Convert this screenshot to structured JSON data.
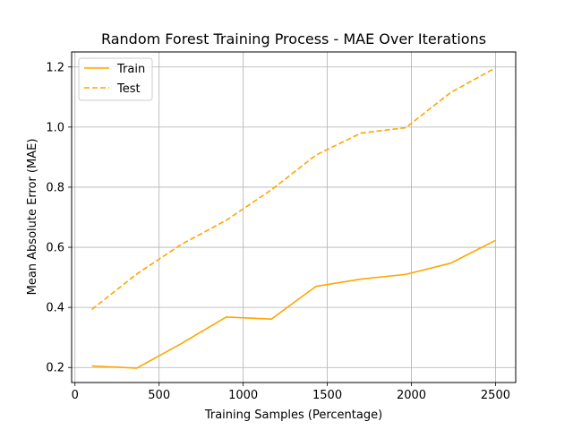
{
  "chart_data": {
    "type": "line",
    "title": "Random Forest Training Process - MAE Over Iterations",
    "xlabel": "Training Samples (Percentage)",
    "ylabel": "Mean Absolute Error (MAE)",
    "xlim": [
      -20,
      2620
    ],
    "ylim": [
      0.15,
      1.25
    ],
    "xticks": [
      0,
      500,
      1000,
      1500,
      2000,
      2500
    ],
    "xtick_labels": [
      "0",
      "500",
      "1000",
      "1500",
      "2000",
      "2500"
    ],
    "yticks": [
      0.2,
      0.4,
      0.6,
      0.8,
      1.0,
      1.2
    ],
    "ytick_labels": [
      "0.2",
      "0.4",
      "0.6",
      "0.8",
      "1.0",
      "1.2"
    ],
    "grid": true,
    "legend_position": "top-left",
    "x": [
      100,
      367,
      633,
      900,
      1167,
      1433,
      1700,
      1967,
      2233,
      2500
    ],
    "series": [
      {
        "name": "Train",
        "style": "solid",
        "color": "#FFA500",
        "values": [
          0.205,
          0.198,
          0.28,
          0.368,
          0.361,
          0.47,
          0.494,
          0.51,
          0.547,
          0.623
        ]
      },
      {
        "name": "Test",
        "style": "dashed",
        "color": "#FFA500",
        "values": [
          0.393,
          0.511,
          0.61,
          0.69,
          0.791,
          0.907,
          0.98,
          0.998,
          1.115,
          1.197
        ]
      }
    ]
  }
}
